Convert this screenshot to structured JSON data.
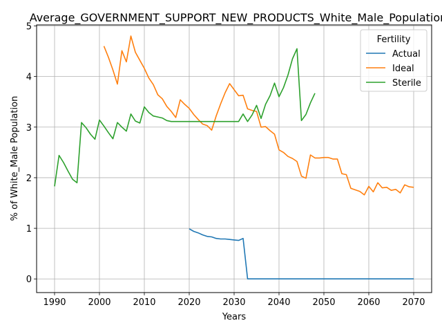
{
  "chart_data": {
    "type": "line",
    "title": "Average_GOVERNMENT_SUPPORT_NEW_PRODUCTS_White_Male_Population",
    "xlabel": "Years",
    "ylabel": "% of White_Male Population",
    "xlim": [
      1986,
      2074
    ],
    "ylim": [
      -0.27,
      5.02
    ],
    "xticks": [
      1990,
      2000,
      2010,
      2020,
      2030,
      2040,
      2050,
      2060,
      2070
    ],
    "yticks": [
      0,
      1,
      2,
      3,
      4,
      5
    ],
    "grid": true,
    "legend": {
      "title": "Fertility",
      "placement": "top-right"
    },
    "series": [
      {
        "name": "Actual",
        "color": "#1f77b4",
        "x": [
          2020,
          2021,
          2022,
          2023,
          2024,
          2025,
          2026,
          2027,
          2028,
          2029,
          2030,
          2031,
          2032,
          2033,
          2034,
          2035,
          2036,
          2037,
          2038,
          2039,
          2040,
          2041,
          2042,
          2043,
          2044,
          2045,
          2046,
          2047,
          2048,
          2049,
          2050,
          2051,
          2052,
          2053,
          2054,
          2055,
          2056,
          2057,
          2058,
          2059,
          2060,
          2061,
          2062,
          2063,
          2064,
          2065,
          2066,
          2067,
          2068,
          2069,
          2070
        ],
        "y": [
          0.99,
          0.94,
          0.91,
          0.87,
          0.84,
          0.83,
          0.8,
          0.79,
          0.79,
          0.78,
          0.77,
          0.76,
          0.8,
          0,
          0,
          0,
          0,
          0,
          0,
          0,
          0,
          0,
          0,
          0,
          0,
          0,
          0,
          0,
          0,
          0,
          0,
          0,
          0,
          0,
          0,
          0,
          0,
          0,
          0,
          0,
          0,
          0,
          0,
          0,
          0,
          0,
          0,
          0,
          0,
          0,
          0
        ]
      },
      {
        "name": "Ideal",
        "color": "#ff7f0e",
        "x": [
          2001,
          2002,
          2003,
          2004,
          2005,
          2006,
          2007,
          2008,
          2009,
          2010,
          2011,
          2012,
          2013,
          2014,
          2015,
          2016,
          2017,
          2018,
          2019,
          2020,
          2021,
          2022,
          2023,
          2024,
          2025,
          2026,
          2027,
          2028,
          2029,
          2030,
          2031,
          2032,
          2033,
          2034,
          2035,
          2036,
          2037,
          2038,
          2039,
          2040,
          2041,
          2042,
          2043,
          2044,
          2045,
          2046,
          2047,
          2048,
          2049,
          2050,
          2051,
          2052,
          2053,
          2054,
          2055,
          2056,
          2057,
          2058,
          2059,
          2060,
          2061,
          2062,
          2063,
          2064,
          2065,
          2066,
          2067,
          2068,
          2069,
          2070
        ],
        "y": [
          4.6,
          4.38,
          4.13,
          3.85,
          4.51,
          4.29,
          4.8,
          4.48,
          4.32,
          4.16,
          3.97,
          3.84,
          3.64,
          3.56,
          3.41,
          3.31,
          3.19,
          3.54,
          3.45,
          3.37,
          3.25,
          3.15,
          3.06,
          3.03,
          2.94,
          3.22,
          3.46,
          3.68,
          3.86,
          3.74,
          3.62,
          3.63,
          3.36,
          3.33,
          3.31,
          3.0,
          3.01,
          2.93,
          2.86,
          2.55,
          2.5,
          2.42,
          2.38,
          2.32,
          2.03,
          1.99,
          2.45,
          2.39,
          2.39,
          2.4,
          2.4,
          2.37,
          2.37,
          2.08,
          2.06,
          1.79,
          1.76,
          1.73,
          1.66,
          1.83,
          1.72,
          1.9,
          1.8,
          1.81,
          1.75,
          1.77,
          1.7,
          1.86,
          1.82,
          1.81
        ]
      },
      {
        "name": "Sterile",
        "color": "#2ca02c",
        "x": [
          1990,
          1991,
          1992,
          1993,
          1994,
          1995,
          1996,
          1997,
          1998,
          1999,
          2000,
          2001,
          2002,
          2003,
          2004,
          2005,
          2006,
          2007,
          2008,
          2009,
          2010,
          2011,
          2012,
          2013,
          2014,
          2015,
          2016,
          2017,
          2018,
          2019,
          2020,
          2021,
          2022,
          2023,
          2024,
          2025,
          2026,
          2027,
          2028,
          2029,
          2030,
          2031,
          2032,
          2033,
          2034,
          2035,
          2036,
          2037,
          2038,
          2039,
          2040,
          2041,
          2042,
          2043,
          2044,
          2045,
          2046,
          2047,
          2048
        ],
        "y": [
          1.83,
          2.44,
          2.3,
          2.13,
          1.97,
          1.9,
          3.09,
          2.99,
          2.86,
          2.76,
          3.14,
          3.02,
          2.89,
          2.77,
          3.09,
          3.0,
          2.92,
          3.26,
          3.12,
          3.08,
          3.4,
          3.29,
          3.22,
          3.2,
          3.18,
          3.13,
          3.11,
          3.11,
          3.11,
          3.11,
          3.11,
          3.11,
          3.11,
          3.11,
          3.11,
          3.11,
          3.11,
          3.11,
          3.11,
          3.11,
          3.11,
          3.11,
          3.26,
          3.11,
          3.24,
          3.43,
          3.17,
          3.45,
          3.62,
          3.87,
          3.6,
          3.78,
          4.03,
          4.35,
          4.55,
          3.13,
          3.25,
          3.48,
          3.67
        ]
      }
    ]
  }
}
